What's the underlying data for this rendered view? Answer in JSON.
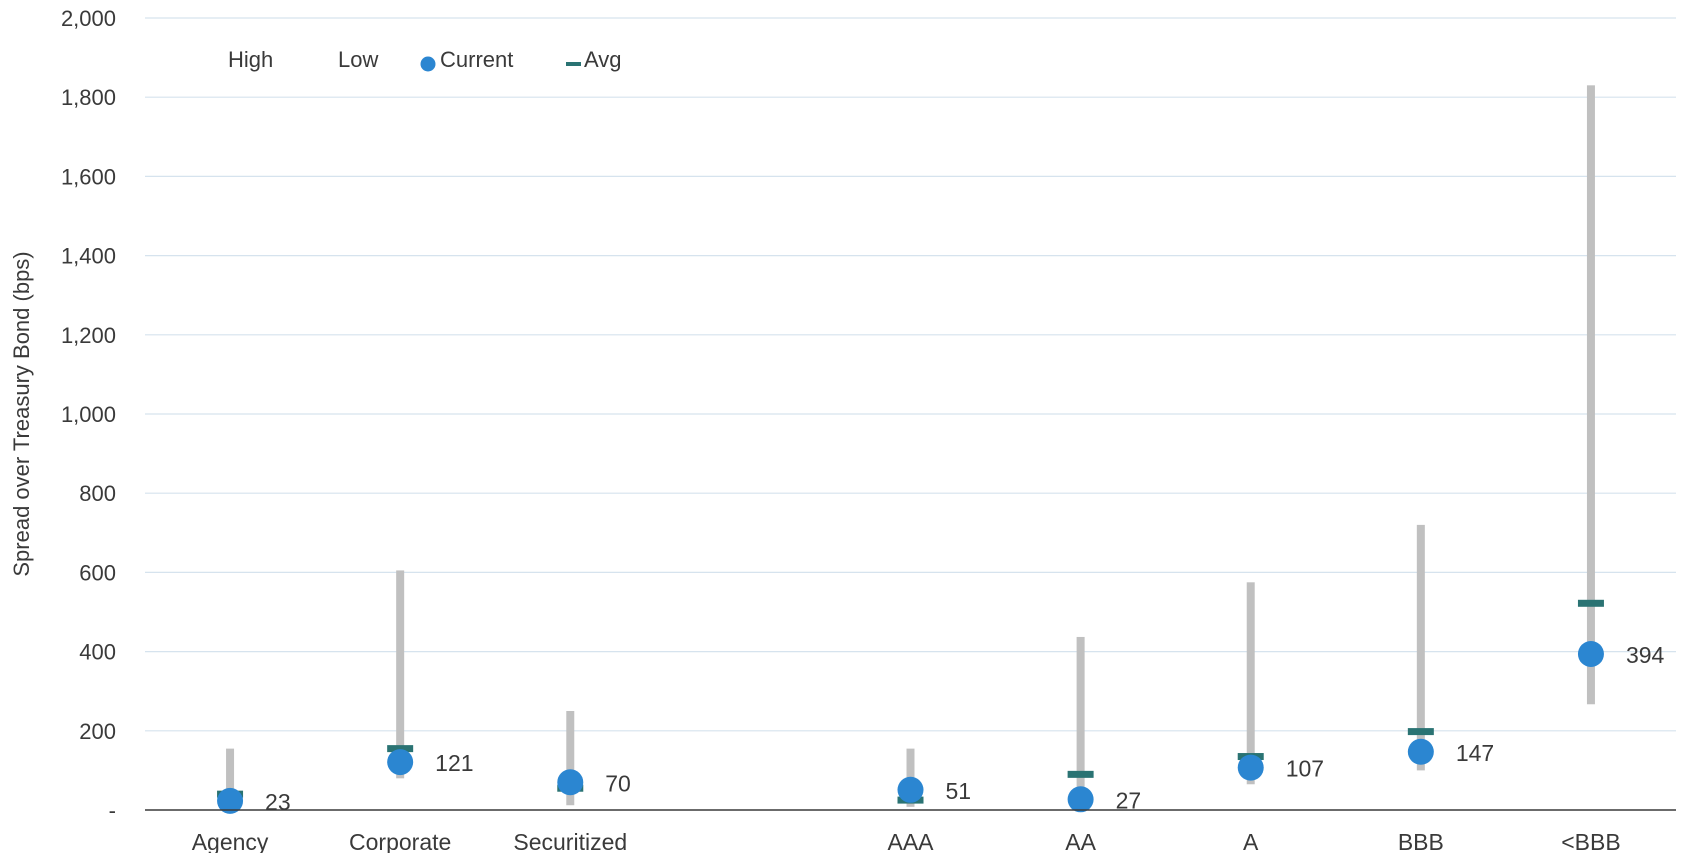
{
  "chart_data": {
    "type": "scatter",
    "title": "",
    "ylabel": "Spread over Treasury Bond (bps)",
    "xlabel": "",
    "ylim": [
      0,
      2000
    ],
    "yticks": [
      0,
      200,
      400,
      600,
      800,
      1000,
      1200,
      1400,
      1600,
      1800,
      2000
    ],
    "ytick_labels": [
      "-",
      "200",
      "400",
      "600",
      "800",
      "1,000",
      "1,200",
      "1,400",
      "1,600",
      "1,800",
      "2,000"
    ],
    "grid": true,
    "legend_position": "top-left",
    "legend": [
      "High",
      "Low",
      "Current",
      "Avg"
    ],
    "colors": {
      "range": "#c0c0c0",
      "current": "#2b86d1",
      "avg": "#2a7373",
      "grid": "#d6e3ee",
      "axis": "#3a3a3a"
    },
    "category_slots": [
      0,
      1,
      2,
      4,
      5,
      6,
      7,
      8
    ],
    "slot_count": 9,
    "categories": [
      "Agency",
      "Corporate",
      "Securitized",
      "AAA",
      "AA",
      "A",
      "BBB",
      "<BBB"
    ],
    "series": [
      {
        "name": "High",
        "values": [
          155,
          605,
          250,
          155,
          437,
          575,
          720,
          1830
        ]
      },
      {
        "name": "Low",
        "values": [
          15,
          80,
          12,
          8,
          15,
          65,
          100,
          267
        ]
      },
      {
        "name": "Current",
        "values": [
          23,
          121,
          70,
          51,
          27,
          107,
          147,
          394
        ]
      },
      {
        "name": "Avg",
        "values": [
          40,
          155,
          55,
          25,
          90,
          135,
          198,
          522
        ]
      }
    ],
    "data_labels": [
      "23",
      "121",
      "70",
      "51",
      "27",
      "107",
      "147",
      "394"
    ]
  }
}
